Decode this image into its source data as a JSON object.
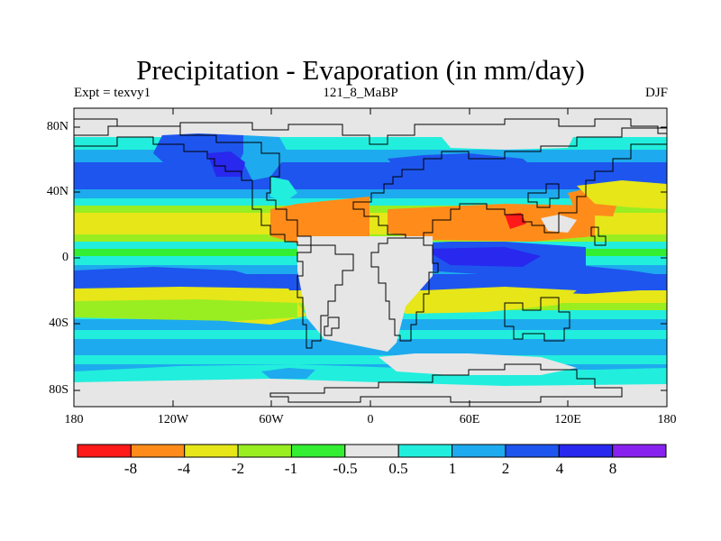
{
  "title": "Precipitation - Evaporation (in mm/day)",
  "subtitle_left": "Expt = texvy1",
  "subtitle_center": "121_8_MaBP",
  "subtitle_right": "DJF",
  "lat_labels": [
    "80N",
    "40N",
    "0",
    "40S",
    "80S"
  ],
  "lon_labels": [
    "180",
    "120W",
    "60W",
    "0",
    "60E",
    "120E",
    "180"
  ],
  "colorbar": {
    "colors": [
      "#ff1a1a",
      "#ff8c1a",
      "#e6e619",
      "#99ee22",
      "#33ee33",
      "#e6e6e6",
      "#22eedd",
      "#1eaaee",
      "#1e55ee",
      "#2828ee",
      "#8822ee"
    ],
    "labels": [
      "-8",
      "-4",
      "-2",
      "-1",
      "-0.5",
      "0.5",
      "1",
      "2",
      "4",
      "8"
    ]
  },
  "map_colors": {
    "ocean_bg": "#22eedd",
    "gray": "#e6e6e6",
    "orange": "#ff8c1a",
    "yellow": "#e6e619",
    "lightgreen": "#99ee22",
    "green": "#33ee33",
    "cyan": "#22eedd",
    "lightblue": "#1eaaee",
    "blue": "#1e55ee",
    "darkblue": "#2828ee",
    "red": "#ff1a1a",
    "coast": "#000000"
  }
}
